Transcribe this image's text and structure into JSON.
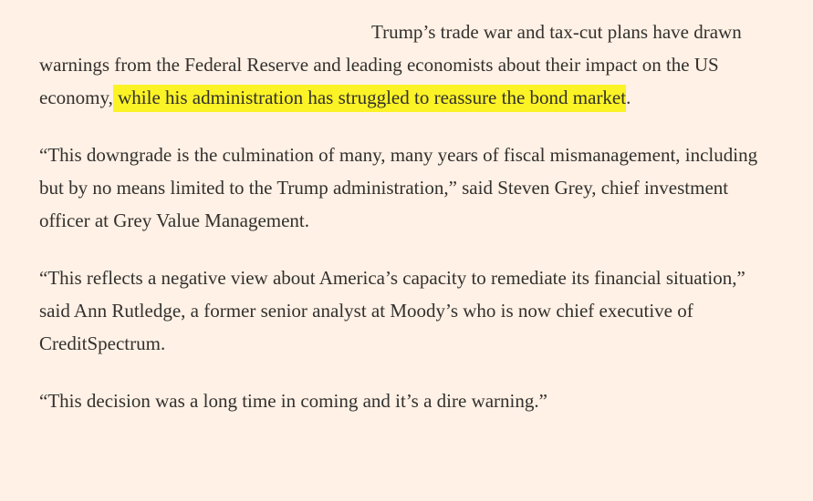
{
  "article": {
    "p1": {
      "before": "Trump’s trade war and tax-cut plans have drawn warnings from the Federal Reserve and leading economists about their impact on the US economy,",
      "highlight": " while his administration has struggled to reassure the bond market",
      "after": "."
    },
    "p2": "“This downgrade is the culmination of many, many years of fiscal mismanagement, including but by no means limited to the Trump administration,” said Steven Grey, chief investment officer at Grey Value Management.",
    "p3": "“This reflects a negative view about America’s capacity to remediate its financial situation,” said Ann Rutledge, a former senior analyst at Moody’s who is now chief executive of CreditSpectrum.",
    "p4": "“This decision was a long time in coming and it’s a dire warning.”",
    "highlight_color": "#fbf325",
    "background_color": "#fff1e5"
  }
}
